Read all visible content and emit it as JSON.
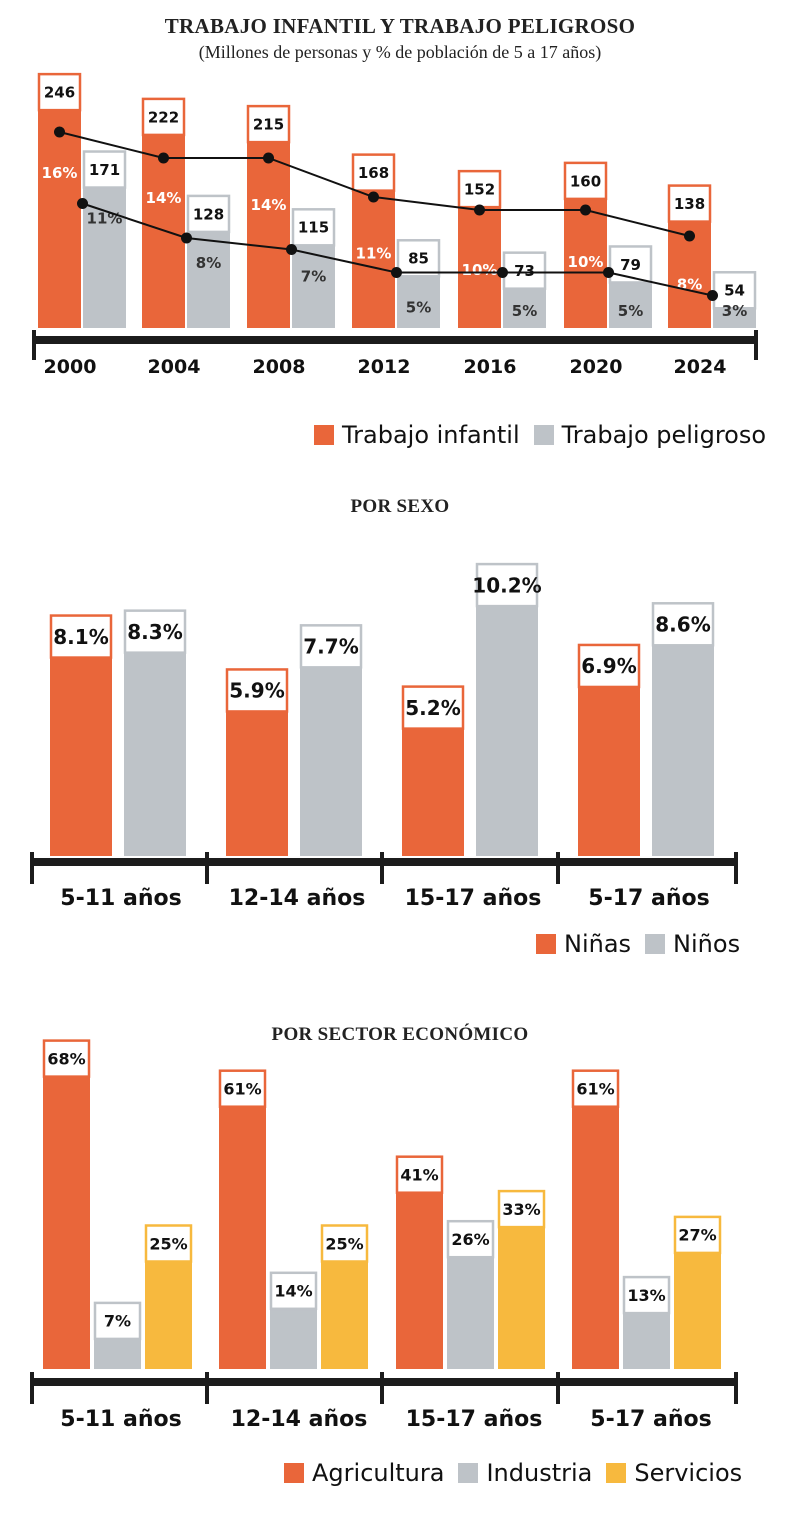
{
  "colors": {
    "orange": "#E9663A",
    "gray": "#BEC3C8",
    "yellow": "#F7B93E",
    "axis": "#1c1c1c",
    "label_box_border_orange": "#E9663A",
    "label_box_border_gray": "#BEC3C8"
  },
  "chart_data": [
    {
      "type": "bar",
      "title": "TRABAJO INFANTIL Y TRABAJO PELIGROSO",
      "subtitle": "(Millones de personas y % de población de 5 a 17 años)",
      "categories": [
        "2000",
        "2004",
        "2008",
        "2012",
        "2016",
        "2020",
        "2024"
      ],
      "series": [
        {
          "name": "Trabajo infantil",
          "values": [
            246,
            222,
            215,
            168,
            152,
            160,
            138
          ],
          "pct_labels": [
            "16%",
            "14%",
            "14%",
            "11%",
            "10%",
            "10%",
            "8%"
          ]
        },
        {
          "name": "Trabajo peligroso",
          "values": [
            171,
            128,
            115,
            85,
            73,
            79,
            54
          ],
          "pct_labels": [
            "11%",
            "8%",
            "7%",
            "5%",
            "5%",
            "5%",
            "3%"
          ]
        }
      ],
      "ylim": [
        0,
        250
      ],
      "legend": "bottom-right"
    },
    {
      "type": "bar",
      "title": "POR SEXO",
      "categories": [
        "5-11 años",
        "12-14 años",
        "15-17 años",
        "5-17 años"
      ],
      "series": [
        {
          "name": "Niñas",
          "values": [
            8.1,
            5.9,
            5.2,
            6.9
          ],
          "labels": [
            "8.1%",
            "5.9%",
            "5.2%",
            "6.9%"
          ]
        },
        {
          "name": "Niños",
          "values": [
            8.3,
            7.7,
            10.2,
            8.6
          ],
          "labels": [
            "8.3%",
            "7.7%",
            "10.2%",
            "8.6%"
          ]
        }
      ],
      "legend": "bottom-right"
    },
    {
      "type": "bar",
      "title": "POR SECTOR ECONÓMICO",
      "categories": [
        "5-11 años",
        "12-14 años",
        "15-17 años",
        "5-17 años"
      ],
      "series": [
        {
          "name": "Agricultura",
          "values": [
            68,
            61,
            41,
            61
          ],
          "labels": [
            "68%",
            "61%",
            "41%",
            "61%"
          ]
        },
        {
          "name": "Industria",
          "values": [
            7,
            14,
            26,
            13
          ],
          "labels": [
            "7%",
            "14%",
            "26%",
            "13%"
          ]
        },
        {
          "name": "Servicios",
          "values": [
            25,
            25,
            33,
            27
          ],
          "labels": [
            "25%",
            "25%",
            "33%",
            "27%"
          ]
        }
      ],
      "legend": "bottom"
    }
  ]
}
